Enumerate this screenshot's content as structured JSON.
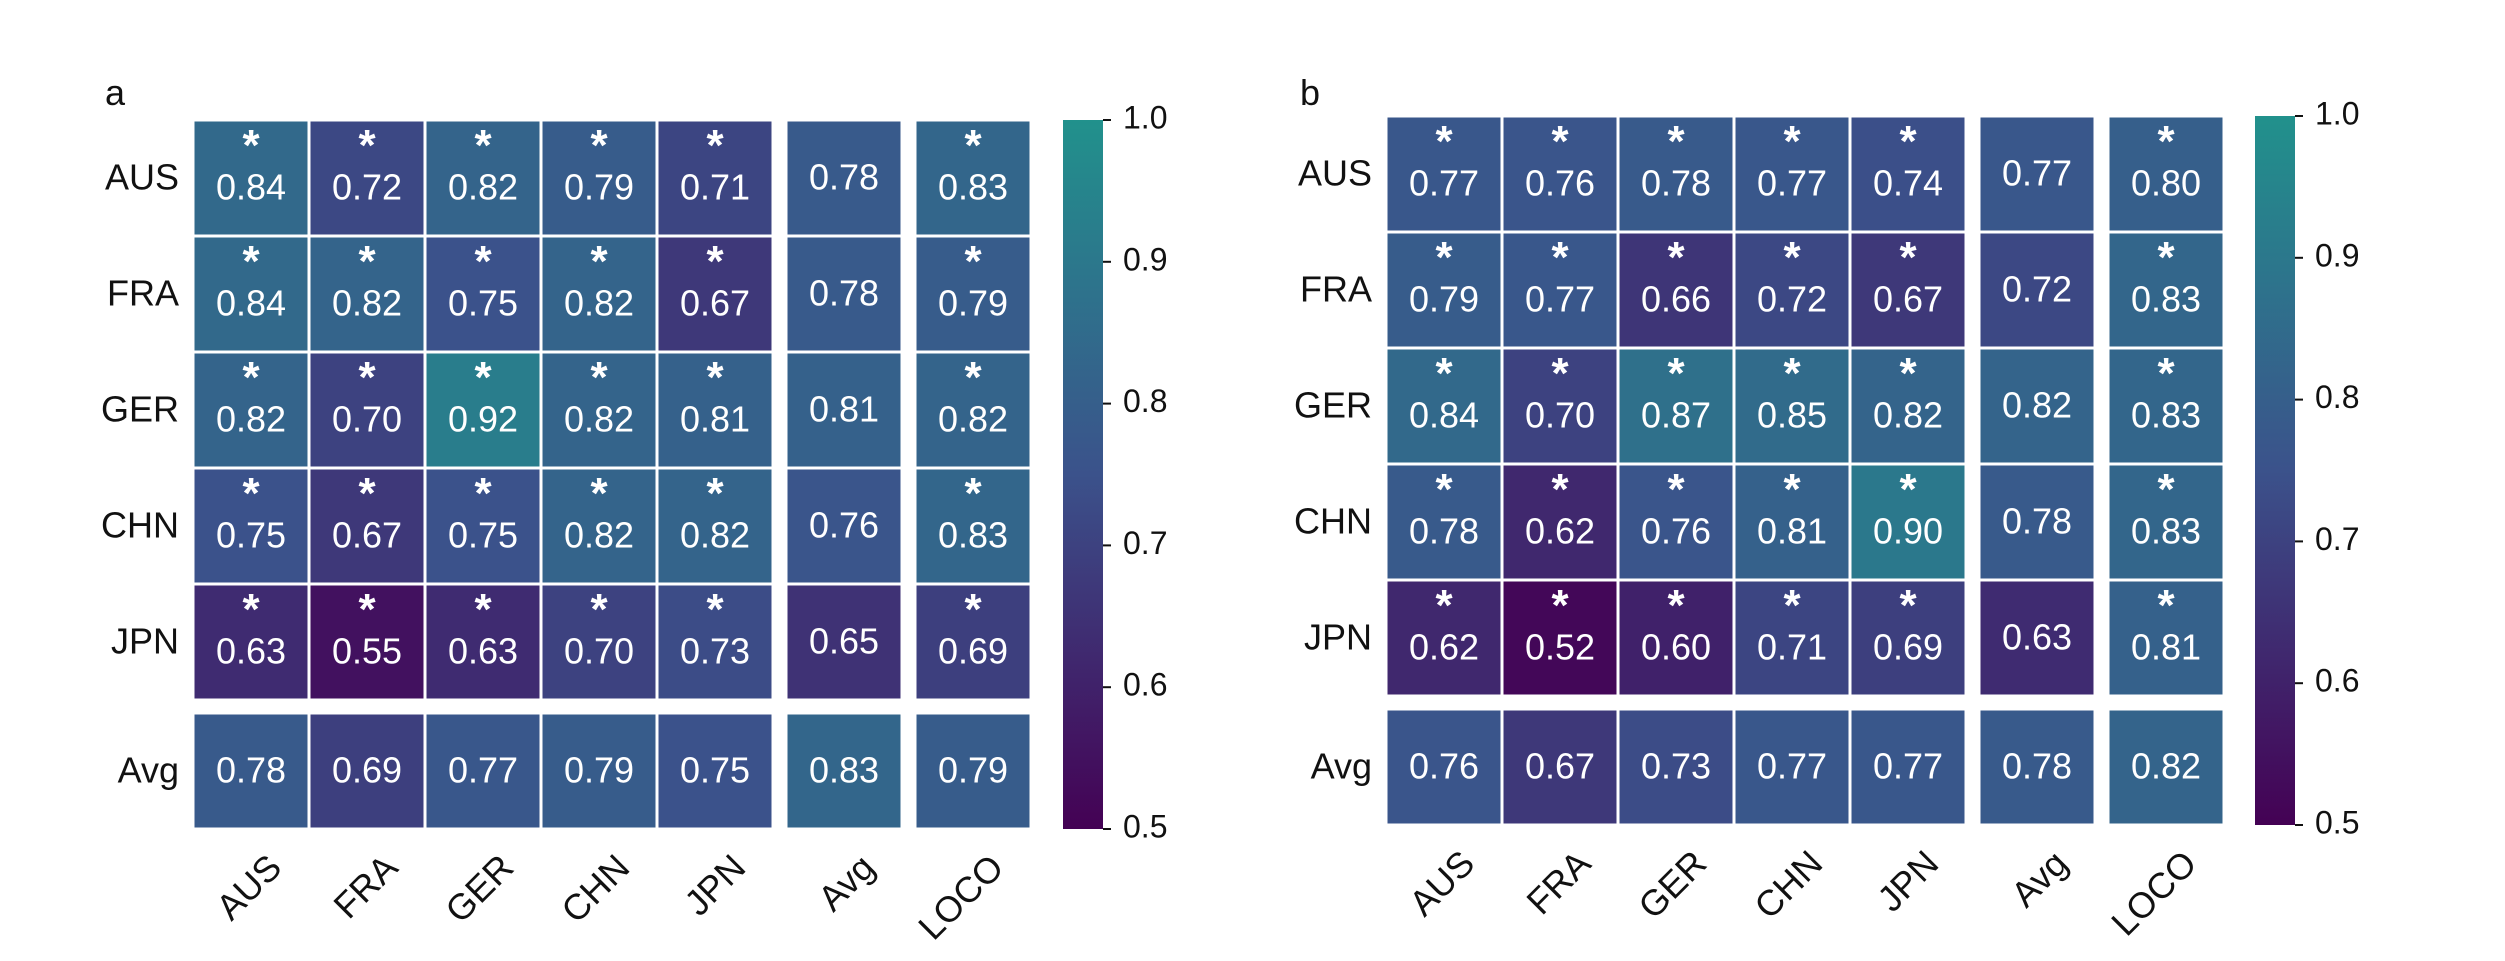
{
  "colormap": {
    "low": "#440154",
    "mid": "#3b528b",
    "high": "#21918c"
  },
  "chart_data": [
    {
      "type": "heatmap",
      "panel_label": "a",
      "rows": [
        "AUS",
        "FRA",
        "GER",
        "CHN",
        "JPN"
      ],
      "cols": [
        "AUS",
        "FRA",
        "GER",
        "CHN",
        "JPN"
      ],
      "extra_cols": [
        "Avg",
        "LOCO"
      ],
      "extra_row": "Avg",
      "values": [
        [
          0.84,
          0.72,
          0.82,
          0.79,
          0.71
        ],
        [
          0.84,
          0.82,
          0.75,
          0.82,
          0.67
        ],
        [
          0.82,
          0.7,
          0.92,
          0.82,
          0.81
        ],
        [
          0.75,
          0.67,
          0.75,
          0.82,
          0.82
        ],
        [
          0.63,
          0.55,
          0.63,
          0.7,
          0.73
        ]
      ],
      "significant": [
        [
          true,
          true,
          true,
          true,
          true
        ],
        [
          true,
          true,
          true,
          true,
          true
        ],
        [
          true,
          true,
          true,
          true,
          true
        ],
        [
          true,
          true,
          true,
          true,
          true
        ],
        [
          true,
          true,
          true,
          true,
          true
        ]
      ],
      "avg_col": [
        0.78,
        0.78,
        0.81,
        0.76,
        0.65
      ],
      "loco_col": [
        0.83,
        0.79,
        0.82,
        0.83,
        0.69
      ],
      "loco_significant": [
        true,
        true,
        true,
        true,
        true
      ],
      "avg_row": [
        0.78,
        0.69,
        0.77,
        0.79,
        0.75
      ],
      "avg_row_avg": 0.83,
      "avg_row_loco": 0.79,
      "colorbar": {
        "min": 0.5,
        "max": 1.0,
        "ticks": [
          "0.5",
          "0.6",
          "0.7",
          "0.8",
          "0.9",
          "1.0"
        ]
      }
    },
    {
      "type": "heatmap",
      "panel_label": "b",
      "rows": [
        "AUS",
        "FRA",
        "GER",
        "CHN",
        "JPN"
      ],
      "cols": [
        "AUS",
        "FRA",
        "GER",
        "CHN",
        "JPN"
      ],
      "extra_cols": [
        "Avg",
        "LOCO"
      ],
      "extra_row": "Avg",
      "values": [
        [
          0.77,
          0.76,
          0.78,
          0.77,
          0.74
        ],
        [
          0.79,
          0.77,
          0.66,
          0.72,
          0.67
        ],
        [
          0.84,
          0.7,
          0.87,
          0.85,
          0.82
        ],
        [
          0.78,
          0.62,
          0.76,
          0.81,
          0.9
        ],
        [
          0.62,
          0.52,
          0.6,
          0.71,
          0.69
        ]
      ],
      "significant": [
        [
          true,
          true,
          true,
          true,
          true
        ],
        [
          true,
          true,
          true,
          true,
          true
        ],
        [
          true,
          true,
          true,
          true,
          true
        ],
        [
          true,
          true,
          true,
          true,
          true
        ],
        [
          true,
          true,
          true,
          true,
          true
        ]
      ],
      "avg_col": [
        0.77,
        0.72,
        0.82,
        0.78,
        0.63
      ],
      "loco_col": [
        0.8,
        0.83,
        0.83,
        0.83,
        0.81
      ],
      "loco_significant": [
        true,
        true,
        true,
        true,
        true
      ],
      "avg_row": [
        0.76,
        0.67,
        0.73,
        0.77,
        0.77
      ],
      "avg_row_avg": 0.78,
      "avg_row_loco": 0.82,
      "colorbar": {
        "min": 0.5,
        "max": 1.0,
        "ticks": [
          "0.5",
          "0.6",
          "0.7",
          "0.8",
          "0.9",
          "1.0"
        ]
      }
    }
  ]
}
